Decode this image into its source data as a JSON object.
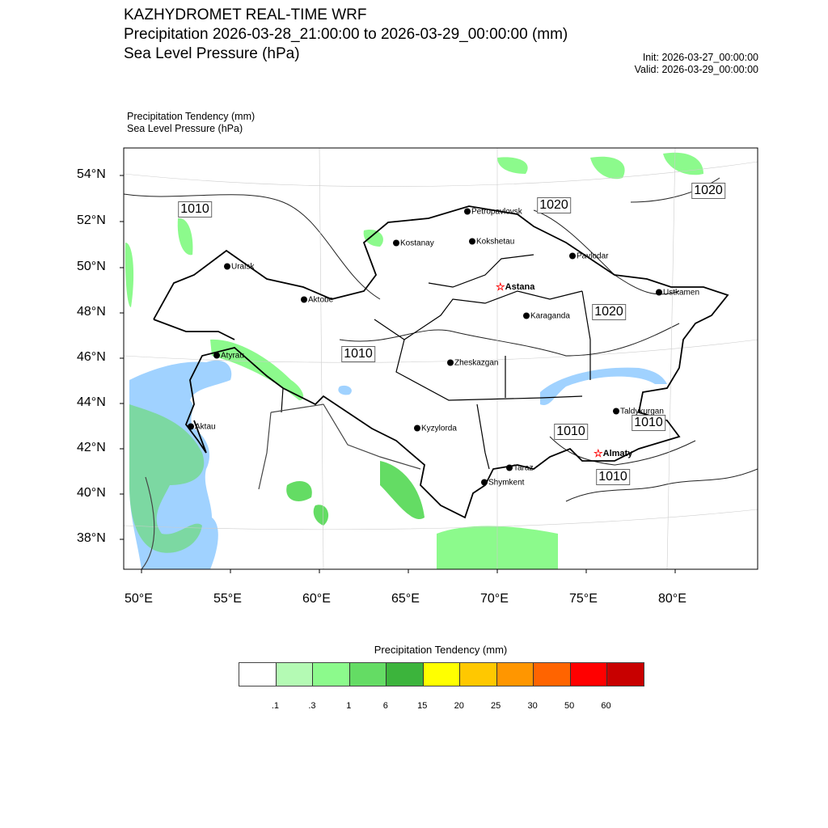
{
  "header": {
    "title": "KAZHYDROMET REAL-TIME WRF",
    "subtitle": "Precipitation 2026-03-28_21:00:00 to 2026-03-29_00:00:00 (mm)",
    "subtitle2": "Sea Level Pressure  (hPa)",
    "init": "Init: 2026-03-27_00:00:00",
    "valid": "Valid: 2026-03-29_00:00:00",
    "field1": "Precipitation Tendency   (mm)",
    "field2": "Sea Level Pressure   (hPa)"
  },
  "axes": {
    "lat_labels": [
      "54°N",
      "52°N",
      "50°N",
      "48°N",
      "46°N",
      "44°N",
      "42°N",
      "40°N",
      "38°N"
    ],
    "lon_labels": [
      "50°E",
      "55°E",
      "60°E",
      "65°E",
      "70°E",
      "75°E",
      "80°E"
    ]
  },
  "cities": [
    "Petropavlovsk",
    "Kostanay",
    "Kokshetau",
    "Pavlodar",
    "Uralsk",
    "Astana",
    "Ustkamen",
    "Aktobe",
    "Karaganda",
    "Atyrau",
    "Zheskazgan",
    "Aktau",
    "Kyzylorda",
    "Taldykurgan",
    "Almaty",
    "Taraz",
    "Shymkent"
  ],
  "isobars": [
    "1010",
    "1020",
    "1020",
    "1020",
    "1010",
    "1010",
    "1010",
    "1010"
  ],
  "colorbar": {
    "title": "Precipitation Tendency (mm)",
    "colors": [
      "#ffffff",
      "#b4fab4",
      "#8cfa8c",
      "#64dc64",
      "#3cb43c",
      "#ffff00",
      "#ffc800",
      "#ff9600",
      "#ff6400",
      "#ff0000",
      "#c80000"
    ],
    "labels": [
      ".1",
      ".3",
      "1",
      "6",
      "15",
      "20",
      "25",
      "30",
      "50",
      "60"
    ]
  }
}
